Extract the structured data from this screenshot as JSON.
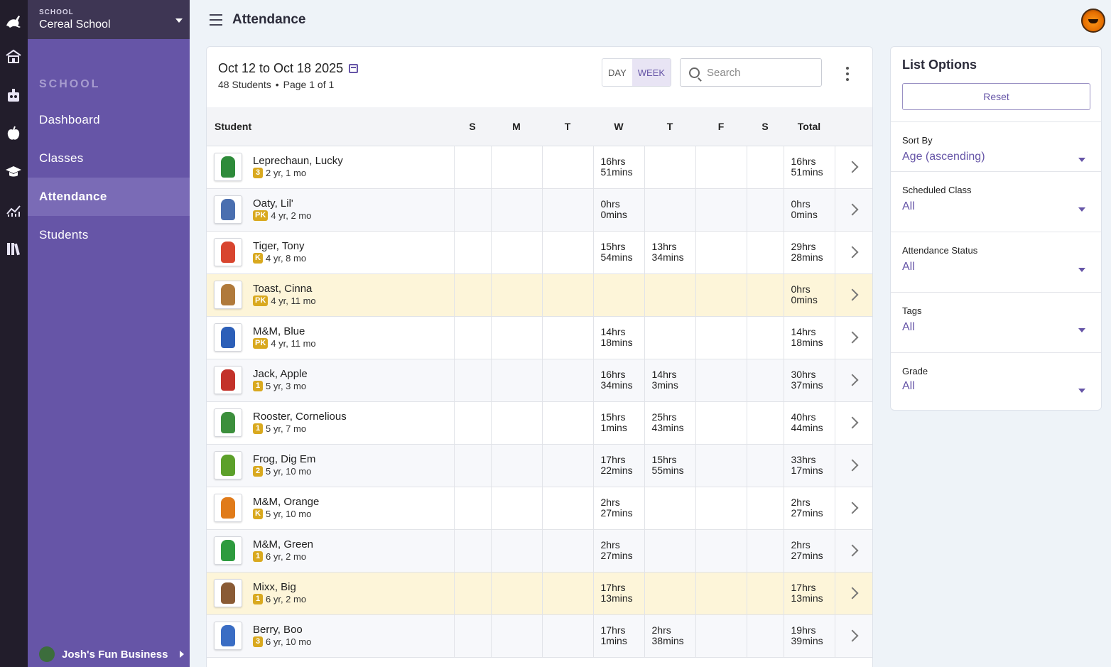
{
  "sidebar": {
    "school_label": "SCHOOL",
    "school_name": "Cereal School",
    "section_heading": "SCHOOL",
    "items": [
      {
        "label": "Dashboard"
      },
      {
        "label": "Classes"
      },
      {
        "label": "Attendance",
        "active": true
      },
      {
        "label": "Students"
      }
    ],
    "business_name": "Josh's Fun Business"
  },
  "header": {
    "title": "Attendance"
  },
  "card": {
    "date_range": "Oct 12 to Oct 18 2025",
    "student_count": "48 Students",
    "page_info": "Page 1 of 1",
    "toggle": {
      "day": "DAY",
      "week": "WEEK",
      "selected": "WEEK"
    },
    "search_placeholder": "Search"
  },
  "table": {
    "columns": [
      "Student",
      "S",
      "M",
      "T",
      "W",
      "T",
      "F",
      "S",
      "Total"
    ],
    "rows": [
      {
        "name": "Leprechaun, Lucky",
        "grade": "3",
        "age": "2 yr, 1 mo",
        "days": [
          "",
          "",
          "",
          "16hrs\n51mins",
          "",
          "",
          ""
        ],
        "total": "16hrs\n51mins"
      },
      {
        "name": "Oaty, Lil'",
        "grade": "PK",
        "age": "4 yr, 2 mo",
        "days": [
          "",
          "",
          "",
          "0hrs\n0mins",
          "",
          "",
          ""
        ],
        "total": "0hrs\n0mins"
      },
      {
        "name": "Tiger, Tony",
        "grade": "K",
        "age": "4 yr, 8 mo",
        "days": [
          "",
          "",
          "",
          "15hrs\n54mins",
          "13hrs\n34mins",
          "",
          ""
        ],
        "total": "29hrs\n28mins"
      },
      {
        "name": "Toast, Cinna",
        "grade": "PK",
        "age": "4 yr, 11 mo",
        "days": [
          "",
          "",
          "",
          "",
          "",
          "",
          ""
        ],
        "total": "0hrs\n0mins",
        "highlight": true
      },
      {
        "name": "M&M, Blue",
        "grade": "PK",
        "age": "4 yr, 11 mo",
        "days": [
          "",
          "",
          "",
          "14hrs\n18mins",
          "",
          "",
          ""
        ],
        "total": "14hrs\n18mins"
      },
      {
        "name": "Jack, Apple",
        "grade": "1",
        "age": "5 yr, 3 mo",
        "days": [
          "",
          "",
          "",
          "16hrs\n34mins",
          "14hrs\n3mins",
          "",
          ""
        ],
        "total": "30hrs\n37mins"
      },
      {
        "name": "Rooster, Cornelious",
        "grade": "1",
        "age": "5 yr, 7 mo",
        "days": [
          "",
          "",
          "",
          "15hrs\n1mins",
          "25hrs\n43mins",
          "",
          ""
        ],
        "total": "40hrs\n44mins"
      },
      {
        "name": "Frog, Dig Em",
        "grade": "2",
        "age": "5 yr, 10 mo",
        "days": [
          "",
          "",
          "",
          "17hrs\n22mins",
          "15hrs\n55mins",
          "",
          ""
        ],
        "total": "33hrs\n17mins"
      },
      {
        "name": "M&M, Orange",
        "grade": "K",
        "age": "5 yr, 10 mo",
        "days": [
          "",
          "",
          "",
          "2hrs\n27mins",
          "",
          "",
          ""
        ],
        "total": "2hrs\n27mins"
      },
      {
        "name": "M&M, Green",
        "grade": "1",
        "age": "6 yr, 2 mo",
        "days": [
          "",
          "",
          "",
          "2hrs\n27mins",
          "",
          "",
          ""
        ],
        "total": "2hrs\n27mins"
      },
      {
        "name": "Mixx, Big",
        "grade": "1",
        "age": "6 yr, 2 mo",
        "days": [
          "",
          "",
          "",
          "17hrs\n13mins",
          "",
          "",
          ""
        ],
        "total": "17hrs\n13mins",
        "highlight": true
      },
      {
        "name": "Berry, Boo",
        "grade": "3",
        "age": "6 yr, 10 mo",
        "days": [
          "",
          "",
          "",
          "17hrs\n1mins",
          "2hrs\n38mins",
          "",
          ""
        ],
        "total": "19hrs\n39mins"
      }
    ],
    "thumb_colors": [
      "#2e8b3a",
      "#4a6fb0",
      "#d8452f",
      "#b07a3c",
      "#2c5fb8",
      "#c3322a",
      "#3c8f3c",
      "#5ca02a",
      "#e07b1a",
      "#2e9b3e",
      "#8a5b35",
      "#3a6dc4"
    ]
  },
  "panel": {
    "title": "List Options",
    "reset_label": "Reset",
    "options": [
      {
        "label": "Sort By",
        "value": "Age (ascending)"
      },
      {
        "label": "Scheduled Class",
        "value": "All"
      },
      {
        "label": "Attendance Status",
        "value": "All"
      },
      {
        "label": "Tags",
        "value": "All"
      },
      {
        "label": "Grade",
        "value": "All"
      }
    ]
  },
  "colors": {
    "accent": "#6655a7",
    "grade_badge": "#d9a91f",
    "highlight_row": "#fdf5d9"
  },
  "icons": {
    "rail": [
      "kangaroo-icon",
      "school-building-icon",
      "toy-icon",
      "apple-icon",
      "graduation-cap-icon",
      "chart-icon",
      "books-icon"
    ]
  }
}
